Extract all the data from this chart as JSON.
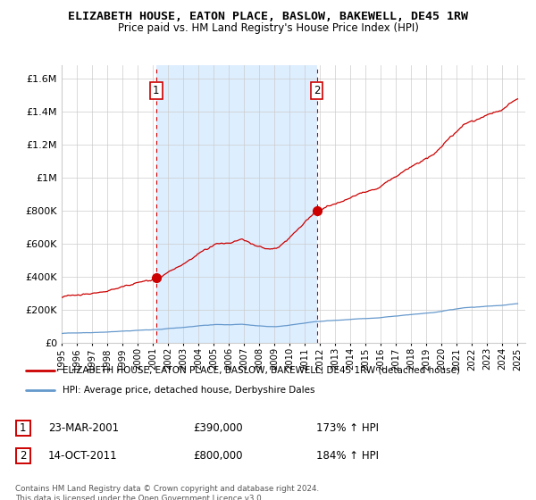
{
  "title": "ELIZABETH HOUSE, EATON PLACE, BASLOW, BAKEWELL, DE45 1RW",
  "subtitle": "Price paid vs. HM Land Registry's House Price Index (HPI)",
  "ylabel_values": [
    0,
    200000,
    400000,
    600000,
    800000,
    1000000,
    1200000,
    1400000,
    1600000
  ],
  "ylim": [
    0,
    1680000
  ],
  "xlim_start": 1995.0,
  "xlim_end": 2025.5,
  "sale1_year": 2001.22,
  "sale1_price": 390000,
  "sale2_year": 2011.78,
  "sale2_price": 800000,
  "sale1_date": "23-MAR-2001",
  "sale1_hpi_pct": "173% ↑ HPI",
  "sale2_date": "14-OCT-2011",
  "sale2_hpi_pct": "184% ↑ HPI",
  "legend_line1": "ELIZABETH HOUSE, EATON PLACE, BASLOW, BAKEWELL, DE45 1RW (detached house)",
  "legend_line2": "HPI: Average price, detached house, Derbyshire Dales",
  "copyright_text": "Contains HM Land Registry data © Crown copyright and database right 2024.\nThis data is licensed under the Open Government Licence v3.0.",
  "red_color": "#CC0000",
  "blue_color": "#6699CC",
  "shade_color": "#DDEEFF",
  "grid_color": "#CCCCCC"
}
